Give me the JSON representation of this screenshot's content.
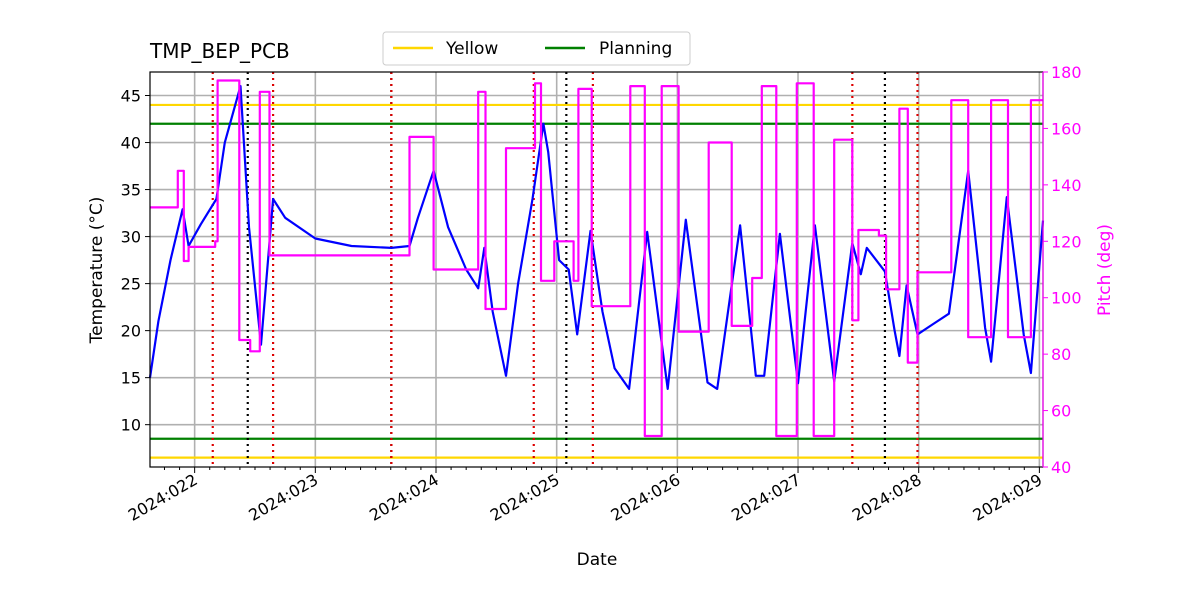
{
  "chart_data": {
    "type": "line",
    "title": "TMP_BEP_PCB",
    "xlabel": "Date",
    "ylabel": "Temperature ($^\\circ$C)",
    "ylabel_display": "Temperature (°C)",
    "y2label": "Pitch (deg)",
    "x_tick_labels": [
      "2024:022",
      "2024:023",
      "2024:024",
      "2024:025",
      "2024:026",
      "2024:027",
      "2024:028",
      "2024:029"
    ],
    "x_tick_days": [
      22,
      23,
      24,
      25,
      26,
      27,
      28,
      29
    ],
    "xlim_days": [
      21.63,
      29.03
    ],
    "ylim": [
      5.5,
      47.5
    ],
    "y_ticks": [
      10,
      15,
      20,
      25,
      30,
      35,
      40,
      45
    ],
    "y2lim": [
      40,
      180
    ],
    "y2_ticks": [
      40,
      60,
      80,
      100,
      120,
      140,
      160,
      180
    ],
    "grid": true,
    "legend": {
      "placement": "top-center",
      "entries": [
        {
          "label": "Yellow",
          "color": "#FFD700"
        },
        {
          "label": "Planning",
          "color": "#008000"
        }
      ]
    },
    "limits": [
      {
        "name": "Yellow",
        "value": 44.0,
        "color": "#FFD700"
      },
      {
        "name": "Yellow",
        "value": 6.5,
        "color": "#FFD700"
      },
      {
        "name": "Planning",
        "value": 42.0,
        "color": "#008000"
      },
      {
        "name": "Planning",
        "value": 8.5,
        "color": "#008000"
      }
    ],
    "vlines_black_days": [
      22.44,
      23.63,
      25.08,
      27.72
    ],
    "vlines_red_days": [
      22.15,
      22.65,
      23.63,
      24.81,
      25.3,
      27.45,
      27.99
    ],
    "series": [
      {
        "axis": "left",
        "color": "#0000FF",
        "points": [
          [
            21.63,
            15.0
          ],
          [
            21.7,
            21.0
          ],
          [
            21.8,
            27.5
          ],
          [
            21.9,
            32.9
          ],
          [
            21.95,
            29.0
          ],
          [
            22.05,
            31.3
          ],
          [
            22.18,
            34.0
          ],
          [
            22.25,
            40.0
          ],
          [
            22.38,
            46.0
          ],
          [
            22.45,
            31.0
          ],
          [
            22.55,
            18.5
          ],
          [
            22.65,
            34.0
          ],
          [
            22.75,
            32.0
          ],
          [
            23.0,
            29.8
          ],
          [
            23.3,
            29.0
          ],
          [
            23.63,
            28.8
          ],
          [
            23.78,
            29.0
          ],
          [
            23.85,
            32.0
          ],
          [
            23.98,
            37.0
          ],
          [
            24.1,
            31.0
          ],
          [
            24.25,
            26.5
          ],
          [
            24.35,
            24.5
          ],
          [
            24.4,
            28.8
          ],
          [
            24.47,
            22.0
          ],
          [
            24.58,
            15.2
          ],
          [
            24.68,
            25.0
          ],
          [
            24.8,
            34.0
          ],
          [
            24.89,
            42.0
          ],
          [
            24.93,
            39.0
          ],
          [
            25.02,
            27.5
          ],
          [
            25.1,
            26.5
          ],
          [
            25.17,
            19.6
          ],
          [
            25.28,
            30.6
          ],
          [
            25.38,
            22.0
          ],
          [
            25.48,
            16.0
          ],
          [
            25.6,
            13.8
          ],
          [
            25.75,
            30.5
          ],
          [
            25.92,
            13.8
          ],
          [
            26.07,
            31.8
          ],
          [
            26.25,
            14.5
          ],
          [
            26.33,
            13.8
          ],
          [
            26.52,
            31.2
          ],
          [
            26.65,
            15.2
          ],
          [
            26.72,
            15.2
          ],
          [
            26.85,
            30.3
          ],
          [
            27.0,
            14.4
          ],
          [
            27.14,
            31.2
          ],
          [
            27.3,
            14.6
          ],
          [
            27.45,
            29.3
          ],
          [
            27.52,
            26.0
          ],
          [
            27.57,
            28.8
          ],
          [
            27.72,
            26.3
          ],
          [
            27.8,
            20.0
          ],
          [
            27.84,
            17.3
          ],
          [
            27.9,
            24.8
          ],
          [
            27.99,
            19.6
          ],
          [
            28.12,
            20.7
          ],
          [
            28.25,
            21.8
          ],
          [
            28.41,
            37.0
          ],
          [
            28.55,
            20.3
          ],
          [
            28.6,
            16.7
          ],
          [
            28.73,
            34.2
          ],
          [
            28.87,
            19.6
          ],
          [
            28.93,
            15.5
          ],
          [
            29.03,
            31.7
          ]
        ]
      },
      {
        "axis": "right",
        "color": "#FF00FF",
        "points": [
          [
            21.63,
            132
          ],
          [
            21.86,
            132
          ],
          [
            21.86,
            145
          ],
          [
            21.91,
            145
          ],
          [
            21.91,
            113
          ],
          [
            21.95,
            113
          ],
          [
            21.95,
            118
          ],
          [
            22.17,
            118
          ],
          [
            22.17,
            120
          ],
          [
            22.19,
            120
          ],
          [
            22.19,
            177
          ],
          [
            22.37,
            177
          ],
          [
            22.37,
            85
          ],
          [
            22.46,
            85
          ],
          [
            22.46,
            81
          ],
          [
            22.54,
            81
          ],
          [
            22.54,
            173
          ],
          [
            22.62,
            173
          ],
          [
            22.62,
            115
          ],
          [
            23.78,
            115
          ],
          [
            23.78,
            157
          ],
          [
            23.98,
            157
          ],
          [
            23.98,
            110
          ],
          [
            24.35,
            110
          ],
          [
            24.35,
            173
          ],
          [
            24.41,
            173
          ],
          [
            24.41,
            96
          ],
          [
            24.58,
            96
          ],
          [
            24.58,
            153
          ],
          [
            24.82,
            153
          ],
          [
            24.82,
            176
          ],
          [
            24.87,
            176
          ],
          [
            24.87,
            106
          ],
          [
            24.98,
            106
          ],
          [
            24.98,
            120
          ],
          [
            25.14,
            120
          ],
          [
            25.14,
            106
          ],
          [
            25.18,
            106
          ],
          [
            25.18,
            174
          ],
          [
            25.29,
            174
          ],
          [
            25.29,
            97
          ],
          [
            25.61,
            97
          ],
          [
            25.61,
            175
          ],
          [
            25.73,
            175
          ],
          [
            25.73,
            51
          ],
          [
            25.87,
            51
          ],
          [
            25.87,
            175
          ],
          [
            26.01,
            175
          ],
          [
            26.01,
            88
          ],
          [
            26.26,
            88
          ],
          [
            26.26,
            155
          ],
          [
            26.45,
            155
          ],
          [
            26.45,
            90
          ],
          [
            26.62,
            90
          ],
          [
            26.62,
            107
          ],
          [
            26.7,
            107
          ],
          [
            26.7,
            175
          ],
          [
            26.82,
            175
          ],
          [
            26.82,
            51
          ],
          [
            26.99,
            51
          ],
          [
            26.99,
            176
          ],
          [
            27.13,
            176
          ],
          [
            27.13,
            51
          ],
          [
            27.3,
            51
          ],
          [
            27.3,
            156
          ],
          [
            27.45,
            156
          ],
          [
            27.45,
            92
          ],
          [
            27.5,
            92
          ],
          [
            27.5,
            124
          ],
          [
            27.67,
            124
          ],
          [
            27.67,
            122
          ],
          [
            27.73,
            122
          ],
          [
            27.73,
            103
          ],
          [
            27.84,
            103
          ],
          [
            27.84,
            167
          ],
          [
            27.91,
            167
          ],
          [
            27.91,
            77
          ],
          [
            27.99,
            77
          ],
          [
            27.99,
            109
          ],
          [
            28.27,
            109
          ],
          [
            28.27,
            170
          ],
          [
            28.41,
            170
          ],
          [
            28.41,
            86
          ],
          [
            28.6,
            86
          ],
          [
            28.6,
            170
          ],
          [
            28.74,
            170
          ],
          [
            28.74,
            86
          ],
          [
            28.93,
            86
          ],
          [
            28.93,
            170
          ],
          [
            29.03,
            170
          ]
        ]
      }
    ]
  }
}
